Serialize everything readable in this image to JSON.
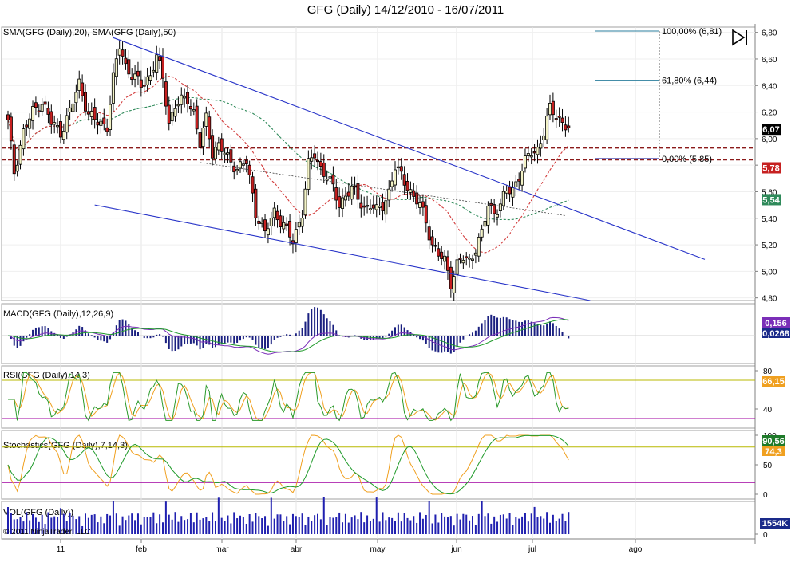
{
  "title": "GFG (Daily)  14/12/2010 - 16/07/2011",
  "copyright": "© 2011 NinjaTrader, LLC",
  "colors": {
    "up": "#f2f2c6",
    "down": "#c62020",
    "sma20": "#d23c3c",
    "sma50": "#2f8a5a",
    "trend": "#2733c8",
    "fib": "#2a7d9c",
    "macd_line": "#7b2fb8",
    "macd_signal": "#1f9a2a",
    "rsi": "#2a9a2a",
    "rsi_smooth": "#f0a020",
    "vol": "#2020b0",
    "level": "#b8b800",
    "low_level": "#a000a0"
  },
  "chart_data": [
    {
      "type": "candlestick",
      "panel": "price",
      "legend": "SMA(GFG (Daily),20), SMA(GFG (Daily),50)",
      "ylim": [
        4.78,
        6.84
      ],
      "y_ticks": [
        "6,80",
        "6,60",
        "6,40",
        "6,20",
        "6,00",
        "5,80",
        "5,60",
        "5,40",
        "5,20",
        "5,00",
        "4,80"
      ],
      "x_ticks": [
        "11",
        "feb",
        "mar",
        "abr",
        "may",
        "jun",
        "jul",
        "ago"
      ],
      "price_tags": [
        {
          "text": "6,07",
          "value": 6.07,
          "color": "#000000"
        },
        {
          "text": "5,78",
          "value": 5.78,
          "color": "#c62020"
        },
        {
          "text": "5,54",
          "value": 5.54,
          "color": "#2f8a5a"
        }
      ],
      "fibonacci": [
        {
          "text": "100,00% (6,81)",
          "value": 6.81
        },
        {
          "text": "61,80% (6,44)",
          "value": 6.44
        },
        {
          "text": "0,00% (5,85)",
          "value": 5.85
        }
      ],
      "horizontal_levels": [
        5.93,
        5.84
      ],
      "close_anchors": [
        [
          0,
          6.12
        ],
        [
          2,
          5.75
        ],
        [
          5,
          6.05
        ],
        [
          8,
          6.2
        ],
        [
          11,
          6.28
        ],
        [
          14,
          6.12
        ],
        [
          17,
          6.05
        ],
        [
          20,
          6.2
        ],
        [
          23,
          6.42
        ],
        [
          26,
          6.18
        ],
        [
          29,
          6.12
        ],
        [
          32,
          6.1
        ],
        [
          34,
          6.45
        ],
        [
          36,
          6.7
        ],
        [
          38,
          6.55
        ],
        [
          40,
          6.48
        ],
        [
          43,
          6.4
        ],
        [
          46,
          6.48
        ],
        [
          48,
          6.62
        ],
        [
          50,
          6.45
        ],
        [
          52,
          6.12
        ],
        [
          54,
          6.25
        ],
        [
          56,
          6.28
        ],
        [
          58,
          6.3
        ],
        [
          60,
          6.2
        ],
        [
          62,
          5.95
        ],
        [
          64,
          6.15
        ],
        [
          66,
          5.9
        ],
        [
          68,
          5.95
        ],
        [
          71,
          5.85
        ],
        [
          74,
          5.78
        ],
        [
          77,
          5.82
        ],
        [
          80,
          5.45
        ],
        [
          83,
          5.28
        ],
        [
          86,
          5.45
        ],
        [
          89,
          5.35
        ],
        [
          92,
          5.22
        ],
        [
          95,
          5.45
        ],
        [
          97,
          5.8
        ],
        [
          99,
          5.88
        ],
        [
          101,
          5.78
        ],
        [
          103,
          5.72
        ],
        [
          105,
          5.62
        ],
        [
          107,
          5.5
        ],
        [
          109,
          5.58
        ],
        [
          111,
          5.62
        ],
        [
          113,
          5.55
        ],
        [
          115,
          5.48
        ],
        [
          117,
          5.5
        ],
        [
          119,
          5.45
        ],
        [
          121,
          5.5
        ],
        [
          123,
          5.6
        ],
        [
          125,
          5.78
        ],
        [
          127,
          5.72
        ],
        [
          129,
          5.65
        ],
        [
          131,
          5.55
        ],
        [
          133,
          5.5
        ],
        [
          135,
          5.38
        ],
        [
          137,
          5.2
        ],
        [
          139,
          5.12
        ],
        [
          141,
          5.08
        ],
        [
          143,
          4.92
        ],
        [
          145,
          5.05
        ],
        [
          147,
          5.1
        ],
        [
          149,
          5.08
        ],
        [
          153,
          5.28
        ],
        [
          155,
          5.5
        ],
        [
          157,
          5.45
        ],
        [
          159,
          5.5
        ],
        [
          161,
          5.6
        ],
        [
          163,
          5.62
        ],
        [
          165,
          5.72
        ],
        [
          167,
          5.82
        ],
        [
          169,
          5.9
        ],
        [
          171,
          5.92
        ],
        [
          173,
          6.05
        ],
        [
          175,
          6.22
        ],
        [
          177,
          6.18
        ],
        [
          179,
          6.12
        ],
        [
          181,
          6.07
        ]
      ],
      "trend_lines": [
        {
          "from": [
            34,
            6.76
          ],
          "to": [
            225,
            5.09
          ]
        },
        {
          "from": [
            28,
            5.5
          ],
          "to": [
            188,
            4.78
          ]
        },
        {
          "from": [
            62,
            5.82
          ],
          "to": [
            180,
            5.42
          ]
        }
      ]
    },
    {
      "type": "histogram+line",
      "panel": "macd",
      "legend": "MACD(GFG (Daily),12,26,9)",
      "tags": [
        {
          "text": "0,156",
          "color": "#7b2fb8"
        },
        {
          "text": "0,0268",
          "color": "#1a2a8a"
        }
      ]
    },
    {
      "type": "line",
      "panel": "rsi",
      "legend": "RSI(GFG (Daily),14,3)",
      "ylim": [
        20,
        85
      ],
      "y_ticks": [
        "80",
        "40"
      ],
      "levels": [
        70,
        30
      ],
      "tags": [
        {
          "text": "66,15",
          "color": "#f0a020"
        }
      ]
    },
    {
      "type": "line",
      "panel": "stochastics",
      "legend": "Stochastics(GFG (Daily),7,14,3)",
      "ylim": [
        0,
        100
      ],
      "y_ticks": [
        "100",
        "50",
        "0"
      ],
      "levels": [
        80,
        20
      ],
      "tags": [
        {
          "text": "90,56",
          "color": "#1f7a2a"
        },
        {
          "text": "74,3",
          "color": "#f0a020"
        }
      ]
    },
    {
      "type": "bar",
      "panel": "volume",
      "legend": "VOL(GFG (Daily))",
      "y_ticks": [
        "0"
      ],
      "tags": [
        {
          "text": "1554K",
          "color": "#1a2a8a"
        }
      ]
    }
  ]
}
